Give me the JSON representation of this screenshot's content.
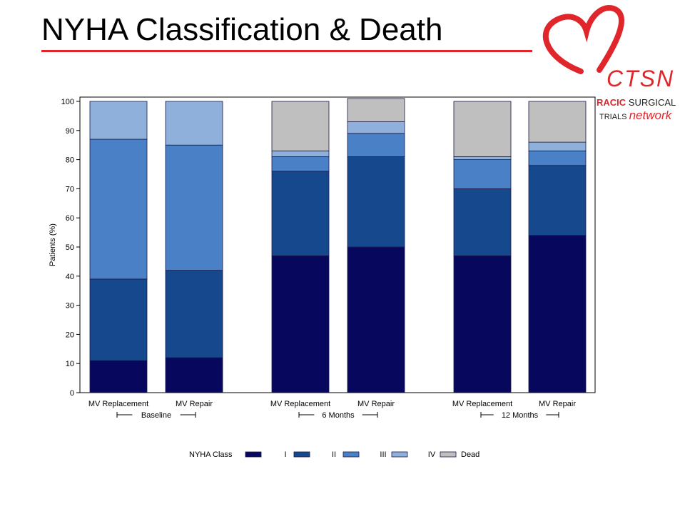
{
  "slide": {
    "title": "NYHA Classification & Death"
  },
  "logo": {
    "ctsn": "CTSN",
    "line1_red": "RACIC",
    "line1_black": "SURGICAL",
    "line2_black": "TRIALS",
    "line2_red": "network",
    "colors": {
      "heart": "#e0262b",
      "text": "#222222"
    }
  },
  "chart_data": {
    "type": "bar",
    "stacked": true,
    "ylabel": "Patients (%)",
    "xlabel": "",
    "ylim": [
      0,
      100
    ],
    "yticks": [
      0,
      10,
      20,
      30,
      40,
      50,
      60,
      70,
      80,
      90,
      100
    ],
    "grid": false,
    "categories": [
      "MV Replacement",
      "MV Repair",
      "MV Replacement",
      "MV Repair",
      "MV Replacement",
      "MV Repair"
    ],
    "groups": [
      {
        "label": "Baseline",
        "categories": [
          0,
          1
        ]
      },
      {
        "label": "6 Months",
        "categories": [
          2,
          3
        ]
      },
      {
        "label": "12 Months",
        "categories": [
          4,
          5
        ]
      }
    ],
    "legend": {
      "title": "NYHA Class",
      "placement": "bottom"
    },
    "series": [
      {
        "name": "I",
        "color": "#07075e",
        "values": [
          11,
          12,
          47,
          50,
          47,
          54
        ]
      },
      {
        "name": "II",
        "color": "#15488c",
        "values": [
          28,
          30,
          29,
          31,
          23,
          24
        ]
      },
      {
        "name": "III",
        "color": "#4a80c5",
        "values": [
          48,
          43,
          5,
          8,
          10,
          5
        ]
      },
      {
        "name": "IV",
        "color": "#8fb0db",
        "values": [
          13,
          15,
          2,
          4,
          1,
          3
        ]
      },
      {
        "name": "Dead",
        "color": "#bfbfbf",
        "values": [
          0,
          0,
          17,
          8,
          19,
          14
        ]
      }
    ]
  }
}
